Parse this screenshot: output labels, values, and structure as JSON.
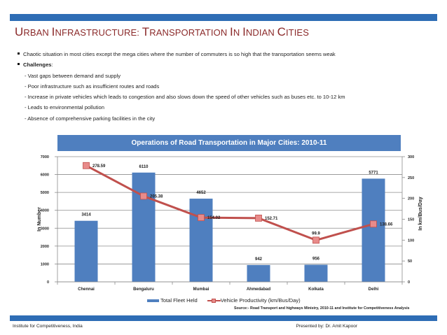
{
  "header": {
    "title_parts": [
      {
        "cap": "U",
        "rest": "RBAN "
      },
      {
        "cap": "I",
        "rest": "NFRASTRUCTURE: "
      },
      {
        "cap": "T",
        "rest": "RANSPORTATION "
      },
      {
        "cap": "I",
        "rest": "N "
      },
      {
        "cap": "I",
        "rest": "NDIAN "
      },
      {
        "cap": "C",
        "rest": "ITIES"
      }
    ],
    "title": "Urban Infrastructure: Transportation In Indian Cities"
  },
  "bullets": [
    {
      "text": "Chaotic situation in most cities except the mega cities where the number of commuters is so high that the transportation seems weak"
    },
    {
      "bold": "Challenges",
      "suffix": ":"
    }
  ],
  "challenges": [
    "- Vast gaps between demand and supply",
    "- Poor infrastructure such as insufficient routes and roads",
    "- Increase in private vehicles which leads to congestion and also slows down the speed of other vehicles such as buses etc. to 10-12 km",
    "- Leads to environmental pollution",
    "- Absence of comprehensive parking facilities in the city"
  ],
  "chart_data": {
    "type": "bar",
    "title": "Operations of Road Transportation in Major Cities: 2010-11",
    "categories": [
      "Chennai",
      "Bengaluru",
      "Mumbai",
      "Ahmedabad",
      "Kolkata",
      "Delhi"
    ],
    "series": [
      {
        "name": "Total Fleet Held",
        "type": "bar",
        "axis": "left",
        "color": "#4f7fbf",
        "values": [
          3414,
          6110,
          4652,
          942,
          956,
          5771
        ]
      },
      {
        "name": "Vehicle Productivity (km/Bus/Day)",
        "type": "line",
        "axis": "right",
        "color": "#c0504d",
        "values": [
          278.59,
          205.38,
          154.02,
          152.71,
          99.9,
          138.66
        ]
      }
    ],
    "bar_labels": [
      "3414",
      "6110",
      "4652",
      "942",
      "956",
      "5771"
    ],
    "line_labels": [
      "278.59",
      "205.38",
      "154.02",
      "152.71",
      "99.9",
      "138.66"
    ],
    "ylabel": "In Number",
    "ylim": [
      0,
      7000
    ],
    "yticks": [
      "0",
      "1000",
      "2000",
      "3000",
      "4000",
      "5000",
      "6000",
      "7000"
    ],
    "y2label": "In km/Bus/Day",
    "y2lim": [
      0,
      300
    ],
    "y2ticks": [
      "0",
      "50",
      "100",
      "150",
      "200",
      "250",
      "300"
    ],
    "grid": true,
    "legend": {
      "position": "bottom",
      "entries": [
        "Total Fleet Held",
        "Vehicle Productivity (km/Bus/Day)"
      ]
    }
  },
  "legend": {
    "bar_label": "Total Fleet Held",
    "line_label": "Vehicle Productivity (km/Bus/Day)"
  },
  "source": "Source:- Road Transport and highways Ministry, 2010-11 and Institute for Competitiveness Analysis",
  "footer": {
    "left": "Institute for Competitiveness, India",
    "right": "Presented by: Dr. Amit Kapoor"
  },
  "colors": {
    "brand_blue": "#2e6db5",
    "title_red": "#8b2a2a",
    "bar_blue": "#4f7fbf",
    "line_red": "#c0504d"
  }
}
